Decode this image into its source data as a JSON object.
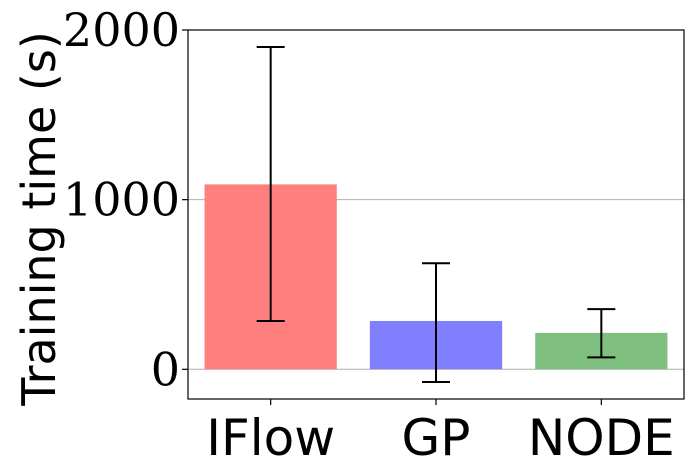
{
  "chart_data": {
    "type": "bar",
    "categories": [
      "IFlow",
      "GP",
      "NODE"
    ],
    "values": [
      1090,
      285,
      215
    ],
    "error_bars": [
      {
        "low": 285,
        "high": 1900
      },
      {
        "low": -75,
        "high": 625
      },
      {
        "low": 70,
        "high": 355
      }
    ],
    "colors": [
      "#ff7f7f",
      "#7f7fff",
      "#7fbf7f"
    ],
    "title": "",
    "xlabel": "",
    "ylabel": "Training time (s)",
    "yticks": [
      "0",
      "1000",
      "2000"
    ],
    "ylim": [
      -175,
      2000
    ],
    "grid": "horizontal"
  }
}
